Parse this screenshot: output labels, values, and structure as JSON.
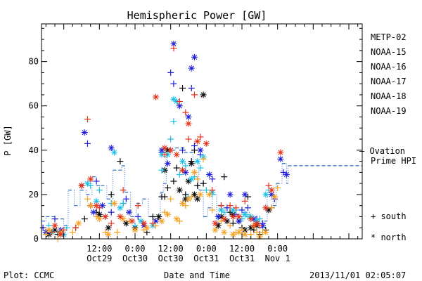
{
  "chart_data": {
    "type": "scatter",
    "title": "Hemispheric Power [GW]",
    "ylabel": "P [GW]",
    "xlabel": "Date and Time",
    "ylim": [
      0,
      97
    ],
    "xlim_hours": [
      -7.5,
      100.5
    ],
    "yticks": [
      0,
      20,
      40,
      60,
      80
    ],
    "xticks": [
      {
        "hour": 12,
        "time": "12:00",
        "date": "Oct29"
      },
      {
        "hour": 24,
        "time": "0:00",
        "date": "Oct30"
      },
      {
        "hour": 36,
        "time": "12:00",
        "date": "Oct30"
      },
      {
        "hour": 48,
        "time": "0:00",
        "date": "Oct31"
      },
      {
        "hour": 60,
        "time": "12:00",
        "date": "Oct31"
      },
      {
        "hour": 72,
        "time": "0:00",
        "date": "Nov 1"
      }
    ],
    "x_hour_origin": "Oct29 00:00",
    "legend": [
      {
        "name": "METP-02",
        "color": "#000000"
      },
      {
        "name": "NOAA-15",
        "color": "#1a1adc"
      },
      {
        "name": "NOAA-16",
        "color": "#18c0e8"
      },
      {
        "name": "NOAA-17",
        "color": "#22e08a"
      },
      {
        "name": "NOAA-18",
        "color": "#f5a020"
      },
      {
        "name": "NOAA-19",
        "color": "#e83018"
      }
    ],
    "ovation_label_1": "— Ovation",
    "ovation_label_2": "Prime HPI",
    "ovation_color": "#2a6cc8",
    "marker_south_label": "+ south",
    "marker_north_label": "* north",
    "ovation_hpi": [
      {
        "x": -7.5,
        "y": 8
      },
      {
        "x": -6,
        "y": 10
      },
      {
        "x": -3,
        "y": 9
      },
      {
        "x": 0,
        "y": 6
      },
      {
        "x": 1.5,
        "y": 22
      },
      {
        "x": 3.5,
        "y": 15
      },
      {
        "x": 5.5,
        "y": 22
      },
      {
        "x": 7.5,
        "y": 20
      },
      {
        "x": 9.5,
        "y": 28
      },
      {
        "x": 11,
        "y": 24
      },
      {
        "x": 12.5,
        "y": 24
      },
      {
        "x": 14.5,
        "y": 18
      },
      {
        "x": 16.5,
        "y": 31
      },
      {
        "x": 19.5,
        "y": 33
      },
      {
        "x": 20.5,
        "y": 21
      },
      {
        "x": 22.5,
        "y": 10
      },
      {
        "x": 24.5,
        "y": 16
      },
      {
        "x": 26.5,
        "y": 18
      },
      {
        "x": 28.5,
        "y": 10
      },
      {
        "x": 30.5,
        "y": 8
      },
      {
        "x": 32.5,
        "y": 21
      },
      {
        "x": 33.5,
        "y": 25
      },
      {
        "x": 34.5,
        "y": 40
      },
      {
        "x": 37.5,
        "y": 41
      },
      {
        "x": 40.5,
        "y": 39
      },
      {
        "x": 43.5,
        "y": 35
      },
      {
        "x": 45.5,
        "y": 22
      },
      {
        "x": 47,
        "y": 10
      },
      {
        "x": 48.5,
        "y": 14
      },
      {
        "x": 50,
        "y": 20
      },
      {
        "x": 51.5,
        "y": 7
      },
      {
        "x": 52.5,
        "y": 10
      },
      {
        "x": 54.5,
        "y": 14
      },
      {
        "x": 56.5,
        "y": 11
      },
      {
        "x": 58.5,
        "y": 8
      },
      {
        "x": 60.5,
        "y": 12
      },
      {
        "x": 62.5,
        "y": 9
      },
      {
        "x": 64.5,
        "y": 8
      },
      {
        "x": 66.5,
        "y": 5
      },
      {
        "x": 67.5,
        "y": 8
      },
      {
        "x": 68.5,
        "y": 20
      },
      {
        "x": 70.5,
        "y": 15
      },
      {
        "x": 71.5,
        "y": 25
      },
      {
        "x": 73.5,
        "y": 34
      },
      {
        "x": 75,
        "y": 25
      },
      {
        "x": 75.5,
        "y": 33
      }
    ],
    "series": [
      {
        "name": "METP-02",
        "color": "#000000",
        "south": [
          [
            -6,
            3
          ],
          [
            -2,
            2
          ],
          [
            4,
            5
          ],
          [
            7,
            9
          ],
          [
            9,
            15
          ],
          [
            11,
            12
          ],
          [
            12,
            10
          ],
          [
            16,
            20
          ],
          [
            19,
            35
          ],
          [
            20,
            16
          ],
          [
            28,
            3
          ],
          [
            30,
            10
          ],
          [
            33,
            19
          ],
          [
            34,
            19
          ],
          [
            35,
            23
          ],
          [
            37,
            26
          ],
          [
            38,
            32
          ],
          [
            40,
            68
          ],
          [
            41,
            20
          ],
          [
            43,
            35
          ],
          [
            44,
            40
          ],
          [
            45,
            24
          ],
          [
            47,
            25
          ],
          [
            54,
            28
          ],
          [
            56,
            12
          ],
          [
            57,
            7
          ],
          [
            60,
            5
          ],
          [
            62,
            19
          ],
          [
            64,
            4
          ],
          [
            66,
            2
          ],
          [
            68,
            4
          ],
          [
            70,
            14
          ]
        ],
        "north": [
          [
            -5,
            2
          ],
          [
            -3,
            4
          ],
          [
            6,
            24
          ],
          [
            12,
            11
          ],
          [
            15,
            5
          ],
          [
            21,
            7
          ],
          [
            24,
            5
          ],
          [
            32,
            10
          ],
          [
            34,
            31
          ],
          [
            35,
            40
          ],
          [
            39,
            22
          ],
          [
            41,
            18
          ],
          [
            42,
            26
          ],
          [
            43,
            34
          ],
          [
            44,
            20
          ],
          [
            45,
            18
          ],
          [
            47,
            65
          ],
          [
            52,
            6
          ],
          [
            53,
            10
          ],
          [
            55,
            8
          ],
          [
            57,
            11
          ],
          [
            59,
            8
          ],
          [
            61,
            4
          ],
          [
            63,
            5
          ],
          [
            65,
            6
          ],
          [
            69,
            13
          ]
        ]
      },
      {
        "name": "NOAA-15",
        "color": "#1a1adc",
        "south": [
          [
            -7,
            5
          ],
          [
            -3,
            9
          ],
          [
            8,
            43
          ],
          [
            11,
            26
          ],
          [
            16,
            12
          ],
          [
            21,
            18
          ],
          [
            25,
            10
          ],
          [
            33,
            39
          ],
          [
            36,
            75
          ],
          [
            37,
            70
          ],
          [
            40,
            40
          ],
          [
            43,
            68
          ],
          [
            44,
            42
          ],
          [
            46,
            38
          ],
          [
            50,
            27
          ],
          [
            53,
            15
          ],
          [
            55,
            14
          ],
          [
            58,
            11
          ],
          [
            60,
            13
          ],
          [
            62,
            14
          ],
          [
            65,
            9
          ],
          [
            67,
            7
          ],
          [
            71,
            18
          ],
          [
            74,
            30
          ]
        ],
        "north": [
          [
            -6,
            3
          ],
          [
            -1,
            4
          ],
          [
            7,
            48
          ],
          [
            10,
            12
          ],
          [
            13,
            15
          ],
          [
            16,
            41
          ],
          [
            22,
            12
          ],
          [
            27,
            6
          ],
          [
            31,
            8
          ],
          [
            33,
            40
          ],
          [
            35,
            34
          ],
          [
            37,
            88
          ],
          [
            39,
            60
          ],
          [
            41,
            30
          ],
          [
            42,
            55
          ],
          [
            43,
            77
          ],
          [
            44,
            82
          ],
          [
            46,
            40
          ],
          [
            49,
            29
          ],
          [
            52,
            10
          ],
          [
            56,
            20
          ],
          [
            59,
            8
          ],
          [
            61,
            20
          ],
          [
            64,
            9
          ],
          [
            67,
            6
          ],
          [
            70,
            20
          ],
          [
            73,
            36
          ],
          [
            75,
            29
          ]
        ]
      },
      {
        "name": "NOAA-16",
        "color": "#18c0e8",
        "south": [
          [
            -5,
            6
          ],
          [
            1,
            5
          ],
          [
            9,
            24
          ],
          [
            12,
            22
          ],
          [
            16,
            16
          ],
          [
            20,
            16
          ],
          [
            24,
            6
          ],
          [
            33,
            31
          ],
          [
            36,
            45
          ],
          [
            37,
            53
          ],
          [
            39,
            29
          ],
          [
            41,
            33
          ],
          [
            42,
            19
          ],
          [
            44,
            28
          ],
          [
            46,
            32
          ],
          [
            48,
            22
          ],
          [
            50,
            20
          ],
          [
            54,
            12
          ],
          [
            58,
            13
          ],
          [
            60,
            9
          ],
          [
            62,
            10
          ],
          [
            66,
            9
          ],
          [
            69,
            22
          ]
        ],
        "north": [
          [
            -4,
            3
          ],
          [
            0,
            2
          ],
          [
            8,
            25
          ],
          [
            11,
            17
          ],
          [
            14,
            10
          ],
          [
            17,
            39
          ],
          [
            19,
            14
          ],
          [
            26,
            8
          ],
          [
            30,
            6
          ],
          [
            33,
            38
          ],
          [
            35,
            38
          ],
          [
            37,
            63
          ],
          [
            38,
            62
          ],
          [
            40,
            35
          ],
          [
            43,
            27
          ],
          [
            45,
            35
          ],
          [
            47,
            37
          ],
          [
            50,
            21
          ],
          [
            53,
            13
          ],
          [
            57,
            13
          ],
          [
            61,
            11
          ],
          [
            63,
            10
          ],
          [
            65,
            8
          ],
          [
            68,
            20
          ]
        ]
      },
      {
        "name": "NOAA-17",
        "color": "#22e08a",
        "south": [],
        "north": []
      },
      {
        "name": "NOAA-18",
        "color": "#f5a020",
        "south": [
          [
            -6,
            2
          ],
          [
            -2,
            0
          ],
          [
            3,
            3
          ],
          [
            8,
            18
          ],
          [
            11,
            10
          ],
          [
            14,
            3
          ],
          [
            18,
            3
          ],
          [
            22,
            8
          ],
          [
            27,
            4
          ],
          [
            31,
            6
          ],
          [
            34,
            12
          ],
          [
            36,
            18
          ],
          [
            39,
            8
          ],
          [
            41,
            15
          ],
          [
            43,
            19
          ],
          [
            45,
            27
          ],
          [
            47,
            36
          ],
          [
            50,
            13
          ],
          [
            53,
            8
          ],
          [
            56,
            6
          ],
          [
            58,
            3
          ],
          [
            60,
            4
          ],
          [
            63,
            2
          ],
          [
            65,
            3
          ],
          [
            67,
            3
          ],
          [
            70,
            14
          ],
          [
            72,
            23
          ]
        ],
        "north": [
          [
            -5,
            4
          ],
          [
            -1,
            3
          ],
          [
            5,
            7
          ],
          [
            9,
            15
          ],
          [
            12,
            9
          ],
          [
            15,
            2
          ],
          [
            17,
            16
          ],
          [
            20,
            9
          ],
          [
            24,
            4
          ],
          [
            28,
            5
          ],
          [
            33,
            8
          ],
          [
            35,
            11
          ],
          [
            38,
            9
          ],
          [
            40,
            16
          ],
          [
            42,
            18
          ],
          [
            44,
            30
          ],
          [
            46,
            20
          ],
          [
            49,
            20
          ],
          [
            51,
            4
          ],
          [
            54,
            3
          ],
          [
            57,
            2
          ],
          [
            59,
            3
          ],
          [
            61,
            2
          ],
          [
            64,
            6
          ],
          [
            66,
            1
          ],
          [
            68,
            3
          ],
          [
            71,
            19
          ]
        ]
      },
      {
        "name": "NOAA-19",
        "color": "#e83018",
        "south": [
          [
            -4,
            3
          ],
          [
            0,
            4
          ],
          [
            4,
            5
          ],
          [
            8,
            54
          ],
          [
            12,
            14
          ],
          [
            16,
            7
          ],
          [
            20,
            22
          ],
          [
            25,
            15
          ],
          [
            30,
            7
          ],
          [
            34,
            38
          ],
          [
            37,
            86
          ],
          [
            39,
            62
          ],
          [
            41,
            57
          ],
          [
            42,
            45
          ],
          [
            44,
            65
          ],
          [
            46,
            46
          ],
          [
            50,
            22
          ],
          [
            53,
            15
          ],
          [
            56,
            15
          ],
          [
            58,
            14
          ],
          [
            61,
            17
          ],
          [
            64,
            6
          ],
          [
            66,
            6
          ],
          [
            69,
            24
          ]
        ],
        "north": [
          [
            -3,
            6
          ],
          [
            -1,
            2
          ],
          [
            6,
            24
          ],
          [
            9,
            27
          ],
          [
            11,
            15
          ],
          [
            14,
            10
          ],
          [
            19,
            10
          ],
          [
            23,
            8
          ],
          [
            27,
            7
          ],
          [
            31,
            64
          ],
          [
            34,
            41
          ],
          [
            36,
            40
          ],
          [
            38,
            38
          ],
          [
            40,
            31
          ],
          [
            42,
            52
          ],
          [
            45,
            44
          ],
          [
            48,
            43
          ],
          [
            51,
            7
          ],
          [
            54,
            9
          ],
          [
            57,
            10
          ],
          [
            59,
            10
          ],
          [
            63,
            9
          ],
          [
            65,
            7
          ],
          [
            68,
            14
          ],
          [
            70,
            22
          ],
          [
            73,
            39
          ]
        ]
      }
    ]
  },
  "footer": {
    "plot_label": "Plot: CCMC",
    "timestamp": "2013/11/01 02:05:07"
  }
}
